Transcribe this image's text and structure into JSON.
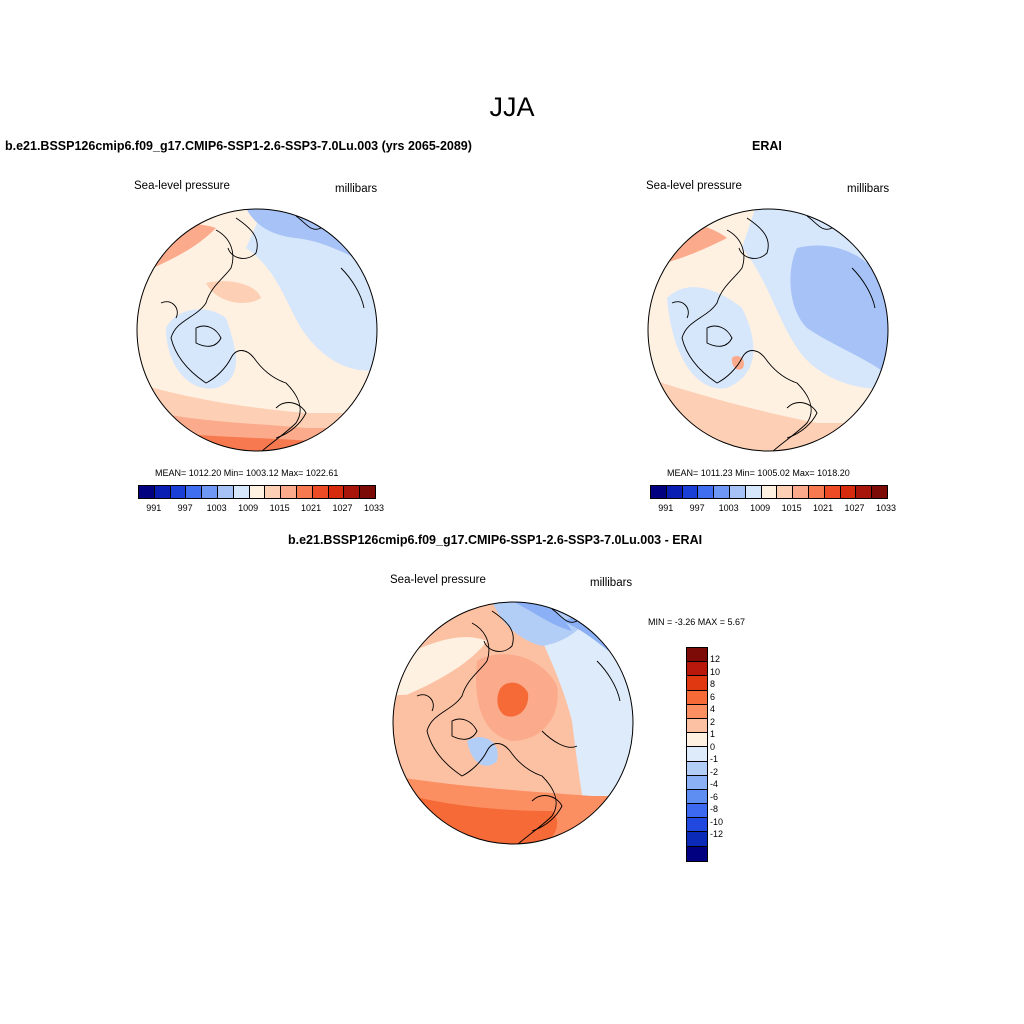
{
  "page": {
    "title": "JJA"
  },
  "panels": {
    "model": {
      "title": "b.e21.BSSP126cmip6.f09_g17.CMIP6-SSP1-2.6-SSP3-7.0Lu.003 (yrs 2065-2089)",
      "left_label": "Sea-level pressure",
      "right_label": "millibars",
      "stats": "MEAN= 1012.20  Min= 1003.12  Max= 1022.61"
    },
    "obs": {
      "title": "ERAI",
      "left_label": "Sea-level pressure",
      "right_label": "millibars",
      "stats": "MEAN= 1011.23  Min= 1005.02  Max= 1018.20"
    },
    "diff": {
      "title": "b.e21.BSSP126cmip6.f09_g17.CMIP6-SSP1-2.6-SSP3-7.0Lu.003 - ERAI",
      "left_label": "Sea-level pressure",
      "right_label": "millibars",
      "stats": "MIN =  -3.26 MAX =   5.67"
    }
  },
  "colorbar_abs": {
    "colors": [
      "#000080",
      "#0a1eb4",
      "#1a3fd6",
      "#3f6ef0",
      "#6f97f5",
      "#a6c2f7",
      "#d6e6fb",
      "#fff1e2",
      "#fdcfb5",
      "#fbab8c",
      "#f7794f",
      "#ed4a26",
      "#d62b0c",
      "#a8150a",
      "#7c0a06"
    ],
    "labels": [
      "991",
      "997",
      "1003",
      "1009",
      "1015",
      "1021",
      "1027",
      "1033"
    ]
  },
  "colorbar_diff": {
    "colors": [
      "#7c0a06",
      "#b8180c",
      "#e03810",
      "#f56a36",
      "#fb8f62",
      "#fcc1a3",
      "#fff1e2",
      "#ddebfb",
      "#b2cdf6",
      "#8cb0f5",
      "#5e8ef2",
      "#3c69ef",
      "#2148df",
      "#0c2ab8",
      "#000080"
    ],
    "labels": [
      "12",
      "10",
      "8",
      "6",
      "4",
      "2",
      "1",
      "0",
      "-1",
      "-2",
      "-4",
      "-6",
      "-8",
      "-10",
      "-12"
    ]
  }
}
